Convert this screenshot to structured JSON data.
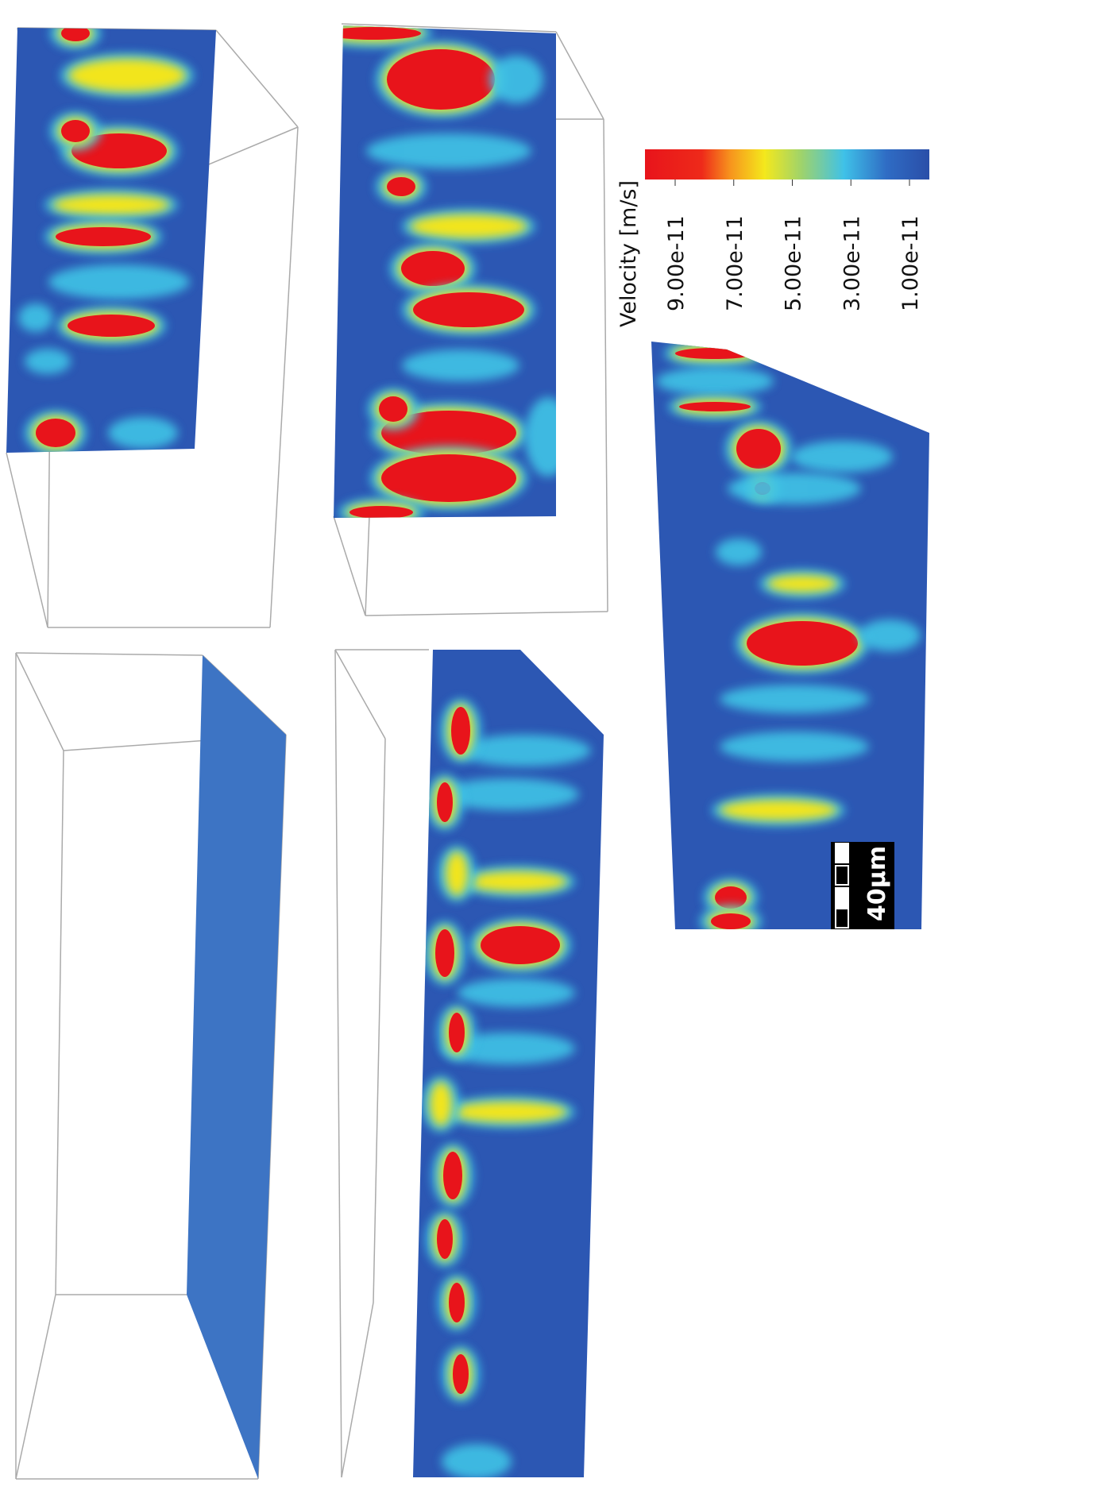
{
  "colorbar": {
    "title": "Velocity [m/s]",
    "ticks": [
      {
        "value": 9e-11,
        "label": "9.00e-11"
      },
      {
        "value": 7e-11,
        "label": "7.00e-11"
      },
      {
        "value": 5e-11,
        "label": "5.00e-11"
      },
      {
        "value": 3e-11,
        "label": "3.00e-11"
      },
      {
        "value": 1e-11,
        "label": "1.00e-11"
      }
    ]
  },
  "scale_bar": {
    "label": "40μm"
  }
}
